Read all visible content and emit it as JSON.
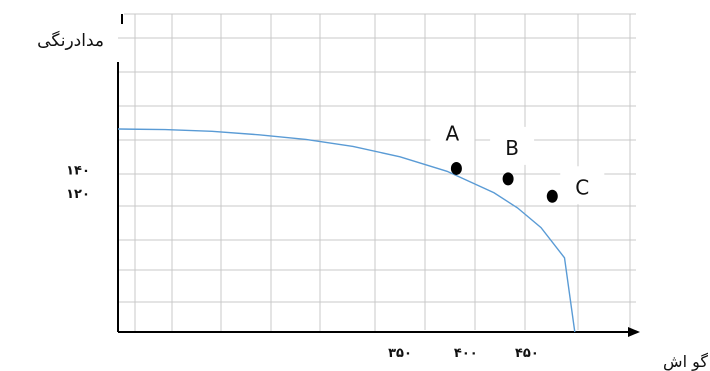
{
  "chart_data": {
    "type": "line",
    "title": "",
    "xlabel": "گو اش",
    "ylabel": "مدادرنگی",
    "x_ticks": [
      "۳۵۰",
      "۴۰۰",
      "۴۵۰"
    ],
    "y_ticks": [
      "۱۴۰",
      "۱۲۰"
    ],
    "xlim": [
      0,
      500
    ],
    "ylim": [
      0,
      200
    ],
    "grid": true,
    "series": [
      {
        "x": [
          0,
          50,
          100,
          150,
          200,
          250,
          300,
          350,
          400,
          425,
          450,
          475,
          486
        ],
        "y": [
          175,
          174.5,
          173,
          170,
          166,
          160,
          151,
          138.5,
          120,
          107,
          90,
          64,
          0
        ]
      }
    ],
    "points": [
      {
        "label": "A",
        "x": 360,
        "y": 141
      },
      {
        "label": "B",
        "x": 415,
        "y": 132
      },
      {
        "label": "C",
        "x": 462,
        "y": 117
      }
    ],
    "colors": {
      "curve": "#5a9bd5",
      "grid": "#c9c9c9",
      "axis": "#000000",
      "point": "#000000"
    }
  }
}
